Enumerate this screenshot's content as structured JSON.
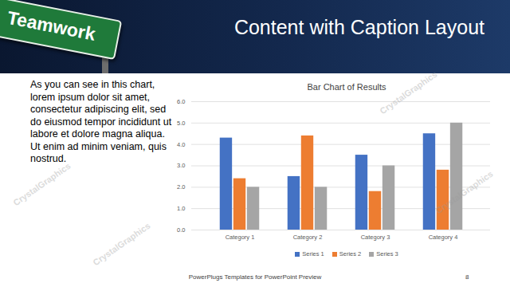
{
  "slide": {
    "title": "Content with Caption Layout",
    "sign": "Teamwork",
    "caption": "As you can see in this chart, lorem ipsum dolor sit amet, consectetur adipiscing elit, sed do eiusmod tempor incididunt ut labore et dolore magna aliqua. Ut enim ad minim veniam, quis nostrud.",
    "footer": "PowerPlugs Templates for PowerPoint Preview",
    "page_number": 8,
    "watermark": "CrystalGraphics"
  },
  "chart_data": {
    "type": "bar",
    "title": "Bar Chart of Results",
    "categories": [
      "Category 1",
      "Category 2",
      "Category 3",
      "Category 4"
    ],
    "series": [
      {
        "name": "Series 1",
        "color": "#4472c4",
        "values": [
          4.3,
          2.5,
          3.5,
          4.5
        ]
      },
      {
        "name": "Series 2",
        "color": "#ed7d31",
        "values": [
          2.4,
          4.4,
          1.8,
          2.8
        ]
      },
      {
        "name": "Series 3",
        "color": "#a5a5a5",
        "values": [
          2.0,
          2.0,
          3.0,
          5.0
        ]
      }
    ],
    "ylim": [
      0,
      6
    ],
    "yticks": [
      0,
      1,
      2,
      3,
      4,
      5,
      6
    ],
    "grid": true,
    "legend": "bottom"
  }
}
